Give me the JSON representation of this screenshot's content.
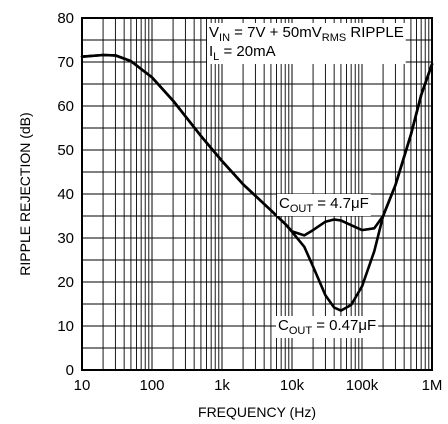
{
  "chart_data": {
    "type": "line",
    "title": "",
    "xlabel": "FREQUENCY (Hz)",
    "ylabel": "RIPPLE REJECTION (dB)",
    "x_scale": "log",
    "xlim": [
      10,
      1000000
    ],
    "ylim": [
      0,
      80
    ],
    "grid": true,
    "x_ticks": [
      {
        "value": 10,
        "label": "10"
      },
      {
        "value": 100,
        "label": "100"
      },
      {
        "value": 1000,
        "label": "1k"
      },
      {
        "value": 10000,
        "label": "10k"
      },
      {
        "value": 100000,
        "label": "100k"
      },
      {
        "value": 1000000,
        "label": "1M"
      }
    ],
    "y_ticks": [
      {
        "value": 0,
        "label": "0"
      },
      {
        "value": 10,
        "label": "10"
      },
      {
        "value": 20,
        "label": "20"
      },
      {
        "value": 30,
        "label": "30"
      },
      {
        "value": 40,
        "label": "40"
      },
      {
        "value": 50,
        "label": "50"
      },
      {
        "value": 60,
        "label": "60"
      },
      {
        "value": 70,
        "label": "70"
      },
      {
        "value": 80,
        "label": "80"
      }
    ],
    "conditions": {
      "vin": {
        "main": "V",
        "sub1": "IN",
        "mid": " = 7V + 50mV",
        "sub2": "RMS",
        "end": " RIPPLE"
      },
      "il": {
        "main": "I",
        "sub": "L",
        "end": " = 20mA"
      }
    },
    "series": [
      {
        "name": {
          "main": "C",
          "sub": "OUT",
          "end": " = 4.7μF"
        },
        "x": [
          10,
          20,
          30,
          50,
          100,
          200,
          500,
          1000,
          2000,
          5000,
          8000,
          10000,
          15000,
          20000,
          30000,
          40000,
          50000,
          70000,
          100000,
          150000,
          200000,
          300000,
          500000,
          700000,
          1000000
        ],
        "y": [
          71.2,
          71.6,
          71.5,
          70.2,
          66.5,
          61.2,
          53.2,
          47.5,
          42.2,
          36.3,
          33.2,
          31.5,
          30.6,
          31.8,
          33.7,
          34.2,
          34.0,
          32.9,
          31.8,
          32.2,
          35.0,
          42.0,
          53.5,
          62.5,
          69.5
        ]
      },
      {
        "name": {
          "main": "C",
          "sub": "OUT",
          "end": " = 0.47μF"
        },
        "x": [
          10,
          20,
          30,
          50,
          100,
          200,
          500,
          1000,
          2000,
          5000,
          8000,
          10000,
          15000,
          20000,
          30000,
          40000,
          50000,
          70000,
          100000,
          150000,
          200000,
          300000,
          500000,
          700000,
          1000000
        ],
        "y": [
          71.2,
          71.6,
          71.5,
          70.2,
          66.5,
          61.2,
          53.2,
          47.5,
          42.2,
          36.3,
          33.2,
          31.4,
          28.0,
          23.5,
          17.0,
          14.2,
          13.5,
          14.8,
          19.0,
          27.0,
          35.0,
          42.0,
          53.5,
          62.5,
          69.5
        ]
      }
    ]
  }
}
